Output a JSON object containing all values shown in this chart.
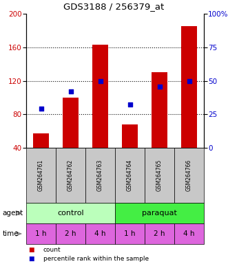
{
  "title": "GDS3188 / 256379_at",
  "samples": [
    "GSM264761",
    "GSM264762",
    "GSM264763",
    "GSM264764",
    "GSM264765",
    "GSM264766"
  ],
  "bar_values": [
    57,
    100,
    163,
    68,
    130,
    185
  ],
  "percentile_values": [
    87,
    107,
    120,
    92,
    113,
    120
  ],
  "bar_color": "#cc0000",
  "dot_color": "#0000cc",
  "ylim_left": [
    40,
    200
  ],
  "ylim_right": [
    0,
    100
  ],
  "yticks_left": [
    40,
    80,
    120,
    160,
    200
  ],
  "yticks_right": [
    0,
    25,
    50,
    75,
    100
  ],
  "time_labels": [
    "1 h",
    "2 h",
    "4 h",
    "1 h",
    "2 h",
    "4 h"
  ],
  "time_color": "#dd66dd",
  "control_color": "#bbffbb",
  "paraquat_color": "#44ee44",
  "sample_bg_color": "#c8c8c8",
  "legend_count_color": "#cc0000",
  "legend_dot_color": "#0000cc",
  "arrow_color": "#888888"
}
